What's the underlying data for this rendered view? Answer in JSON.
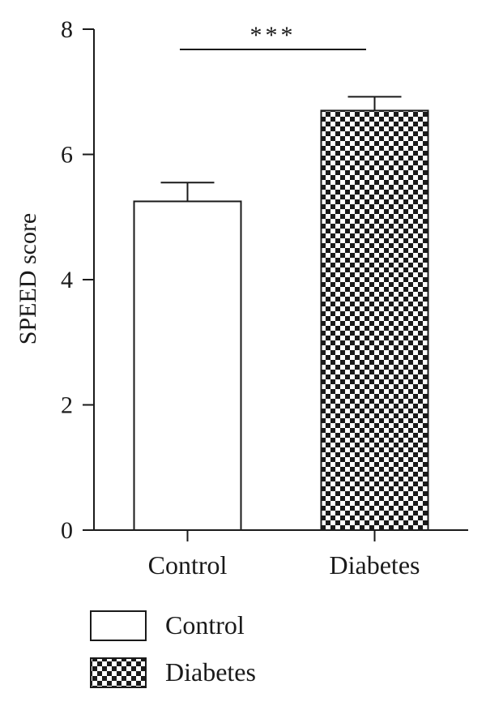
{
  "chart_data": {
    "type": "bar",
    "title": "",
    "xlabel": "",
    "ylabel": "SPEED score",
    "categories": [
      "Control",
      "Diabetes"
    ],
    "values": [
      5.25,
      6.7
    ],
    "errors": [
      0.3,
      0.22
    ],
    "ylim": [
      0,
      8
    ],
    "yticks": [
      0,
      2,
      4,
      6,
      8
    ],
    "grid": false,
    "legend": {
      "placement": "bottom-left",
      "entries": [
        "Control",
        "Diabetes"
      ]
    },
    "annotation": {
      "text": "***",
      "between": [
        "Control",
        "Diabetes"
      ]
    },
    "series_styles": [
      {
        "fill": "white",
        "color": "#ffffff"
      },
      {
        "fill": "checkerboard",
        "color": "#1a1a1a"
      }
    ]
  }
}
